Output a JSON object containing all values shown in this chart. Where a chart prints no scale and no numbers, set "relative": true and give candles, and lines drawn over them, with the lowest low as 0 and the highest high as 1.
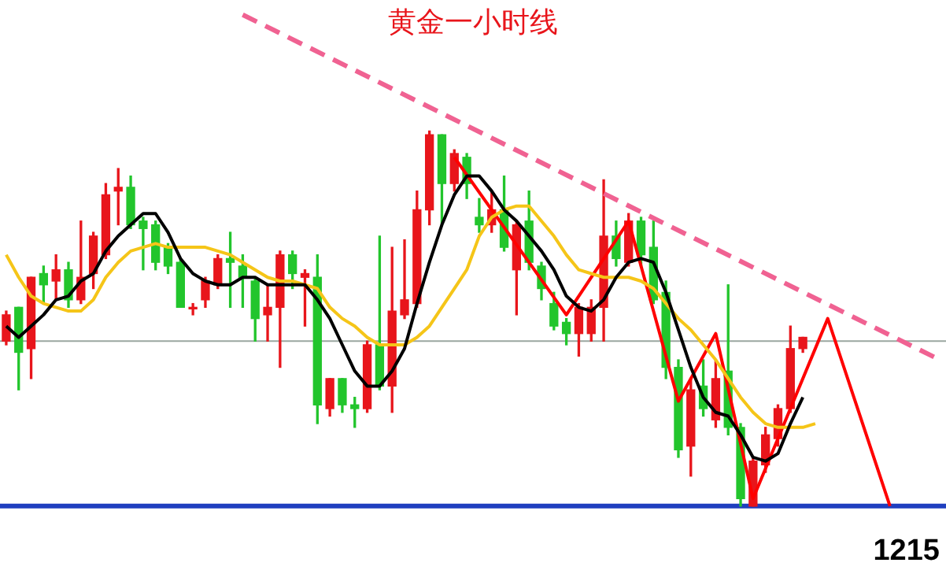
{
  "chart_data": {
    "type": "candlestick",
    "title": "黄金一小时线",
    "relative": true,
    "categories": [
      null,
      null,
      null,
      null,
      null,
      null,
      null,
      null,
      null,
      null,
      null,
      null,
      null,
      null,
      null,
      null,
      null,
      null,
      null,
      null,
      null,
      null,
      null,
      null,
      null,
      null,
      null,
      null,
      null,
      null,
      null,
      null,
      null,
      null,
      null,
      null,
      null,
      null,
      null,
      null,
      null,
      null,
      null,
      null,
      null,
      null,
      null,
      null,
      null,
      null,
      null,
      null,
      null,
      null,
      null,
      null,
      null,
      null,
      null,
      null,
      null,
      null,
      null,
      null,
      null,
      null,
      null,
      null,
      null,
      null,
      null,
      null,
      null,
      null,
      null,
      null
    ],
    "ohlc": [
      [
        0.44,
        0.52,
        0.43,
        0.51
      ],
      [
        0.53,
        0.53,
        0.31,
        0.41
      ],
      [
        0.42,
        0.61,
        0.34,
        0.61
      ],
      [
        0.62,
        0.64,
        0.54,
        0.59
      ],
      [
        0.6,
        0.67,
        0.55,
        0.63
      ],
      [
        0.63,
        0.65,
        0.53,
        0.55
      ],
      [
        0.55,
        0.76,
        0.54,
        0.61
      ],
      [
        0.62,
        0.73,
        0.58,
        0.72
      ],
      [
        0.67,
        0.86,
        0.66,
        0.83
      ],
      [
        0.84,
        0.9,
        0.75,
        0.85
      ],
      [
        0.85,
        0.88,
        0.74,
        0.75
      ],
      [
        0.76,
        0.77,
        0.63,
        0.74
      ],
      [
        0.75,
        0.76,
        0.63,
        0.65
      ],
      [
        0.69,
        0.7,
        0.62,
        0.64
      ],
      [
        0.65,
        0.66,
        0.53,
        0.53
      ],
      [
        0.53,
        0.54,
        0.51,
        0.53
      ],
      [
        0.55,
        0.61,
        0.53,
        0.6
      ],
      [
        0.59,
        0.67,
        0.58,
        0.66
      ],
      [
        0.66,
        0.73,
        0.53,
        0.65
      ],
      [
        0.64,
        0.67,
        0.53,
        0.61
      ],
      [
        0.6,
        0.61,
        0.44,
        0.5
      ],
      [
        0.51,
        0.59,
        0.44,
        0.53
      ],
      [
        0.53,
        0.68,
        0.37,
        0.67
      ],
      [
        0.67,
        0.68,
        0.58,
        0.62
      ],
      [
        0.61,
        0.63,
        0.48,
        0.62
      ],
      [
        0.61,
        0.67,
        0.22,
        0.27
      ],
      [
        0.26,
        0.34,
        0.24,
        0.34
      ],
      [
        0.34,
        0.34,
        0.25,
        0.27
      ],
      [
        0.27,
        0.29,
        0.21,
        0.26
      ],
      [
        0.26,
        0.44,
        0.25,
        0.43
      ],
      [
        0.43,
        0.72,
        0.31,
        0.32
      ],
      [
        0.32,
        0.69,
        0.25,
        0.52
      ],
      [
        0.51,
        0.71,
        0.5,
        0.55
      ],
      [
        0.54,
        0.84,
        0.53,
        0.79
      ],
      [
        0.79,
        1,
        0.75,
        0.99
      ],
      [
        0.99,
        0.99,
        0.75,
        0.86
      ],
      [
        0.86,
        0.95,
        0.84,
        0.94
      ],
      [
        0.93,
        0.94,
        0.82,
        0.86
      ],
      [
        0.77,
        0.82,
        0.73,
        0.75
      ],
      [
        0.75,
        0.84,
        0.73,
        0.79
      ],
      [
        0.79,
        0.88,
        0.68,
        0.69
      ],
      [
        0.63,
        0.76,
        0.51,
        0.75
      ],
      [
        0.76,
        0.84,
        0.63,
        0.65
      ],
      [
        0.64,
        0.65,
        0.55,
        0.58
      ],
      [
        0.54,
        0.57,
        0.47,
        0.48
      ],
      [
        0.49,
        0.5,
        0.43,
        0.46
      ],
      [
        0.46,
        0.54,
        0.4,
        0.53
      ],
      [
        0.46,
        0.55,
        0.44,
        0.53
      ],
      [
        0.53,
        0.87,
        0.44,
        0.72
      ],
      [
        0.72,
        0.76,
        0.64,
        0.66
      ],
      [
        0.65,
        0.78,
        0.64,
        0.76
      ],
      [
        0.76,
        0.77,
        0.64,
        0.67
      ],
      [
        0.69,
        0.76,
        0.54,
        0.55
      ],
      [
        0.57,
        0.6,
        0.34,
        0.37
      ],
      [
        0.37,
        0.39,
        0.13,
        0.15
      ],
      [
        0.16,
        0.34,
        0.08,
        0.31
      ],
      [
        0.32,
        0.39,
        0.24,
        0.26
      ],
      [
        0.23,
        0.39,
        0.21,
        0.34
      ],
      [
        0.36,
        0.59,
        0.19,
        0.21
      ],
      [
        0.21,
        0.22,
        0,
        0.02
      ],
      [
        0,
        0.13,
        0,
        0.12
      ],
      [
        0.11,
        0.21,
        0.09,
        0.19
      ],
      [
        0.18,
        0.27,
        0.16,
        0.26
      ],
      [
        0.26,
        0.48,
        0.25,
        0.42
      ],
      [
        0.42,
        0.45,
        0.41,
        0.45
      ],
      null,
      null,
      null,
      null,
      null,
      null,
      null,
      null,
      null,
      null,
      null
    ],
    "series": [
      {
        "type": "line",
        "color": "#000000",
        "values": [
          0.48,
          0.45,
          0.48,
          0.51,
          0.55,
          0.56,
          0.6,
          0.62,
          0.68,
          0.72,
          0.75,
          0.78,
          0.78,
          0.73,
          0.66,
          0.62,
          0.6,
          0.59,
          0.59,
          0.61,
          0.61,
          0.59,
          0.59,
          0.59,
          0.59,
          0.55,
          0.5,
          0.43,
          0.36,
          0.32,
          0.32,
          0.36,
          0.42,
          0.54,
          0.65,
          0.75,
          0.83,
          0.88,
          0.88,
          0.84,
          0.79,
          0.76,
          0.72,
          0.68,
          0.63,
          0.56,
          0.53,
          0.52,
          0.55,
          0.61,
          0.65,
          0.66,
          0.65,
          0.57,
          0.47,
          0.37,
          0.29,
          0.25,
          0.24,
          0.19,
          0.13,
          0.12,
          0.14,
          0.22,
          0.29,
          null,
          null,
          null,
          null,
          null,
          null,
          null,
          null,
          null,
          null,
          null
        ]
      },
      {
        "type": "line",
        "color": "#f5c518",
        "values": [
          0.67,
          0.61,
          0.56,
          0.54,
          0.53,
          0.52,
          0.52,
          0.55,
          0.61,
          0.65,
          0.68,
          0.69,
          0.7,
          0.69,
          0.69,
          0.69,
          0.69,
          0.68,
          0.67,
          0.65,
          0.63,
          0.61,
          0.6,
          0.6,
          0.59,
          0.58,
          0.53,
          0.5,
          0.48,
          0.45,
          0.43,
          0.43,
          0.43,
          0.45,
          0.48,
          0.53,
          0.58,
          0.63,
          0.72,
          0.77,
          0.79,
          0.8,
          0.8,
          0.76,
          0.72,
          0.67,
          0.63,
          0.62,
          0.61,
          0.61,
          0.61,
          0.6,
          0.58,
          0.54,
          0.5,
          0.47,
          0.43,
          0.39,
          0.34,
          0.29,
          0.25,
          0.22,
          0.21,
          0.21,
          0.21,
          0.22,
          null,
          null,
          null,
          null,
          null,
          null,
          null,
          null,
          null,
          null
        ]
      },
      {
        "type": "line",
        "color": "#ff0000",
        "values": [
          null,
          null,
          null,
          null,
          null,
          null,
          null,
          null,
          null,
          null,
          null,
          null,
          null,
          null,
          null,
          null,
          null,
          null,
          null,
          null,
          null,
          null,
          null,
          null,
          null,
          null,
          null,
          null,
          null,
          null,
          null,
          null,
          null,
          null,
          null,
          null,
          0.93,
          null,
          null,
          null,
          null,
          null,
          null,
          null,
          null,
          0.51,
          null,
          null,
          null,
          null,
          0.76,
          null,
          null,
          null,
          0.28,
          null,
          null,
          0.46,
          null,
          null,
          0.02,
          null,
          null,
          null,
          null,
          null,
          0.5,
          null,
          null,
          null,
          null,
          0,
          null,
          null,
          null,
          null
        ]
      },
      {
        "type": "line",
        "color": "#f06292",
        "line_style": "dashed",
        "values": [
          null,
          null,
          null,
          null,
          null,
          null,
          null,
          null,
          null,
          null,
          null,
          null,
          null,
          null,
          null,
          null,
          null,
          null,
          null,
          1.31,
          null,
          null,
          null,
          null,
          null,
          null,
          null,
          null,
          null,
          null,
          null,
          null,
          null,
          null,
          null,
          null,
          null,
          null,
          null,
          null,
          null,
          null,
          null,
          null,
          null,
          null,
          null,
          null,
          null,
          null,
          null,
          null,
          null,
          null,
          null,
          null,
          null,
          null,
          null,
          null,
          null,
          null,
          null,
          null,
          null,
          null,
          null,
          null,
          null,
          null,
          null,
          null,
          null,
          null,
          null,
          0.39
        ]
      }
    ],
    "ref_lines": [
      {
        "axis": "y",
        "value": 0,
        "color": "#1f3fbf"
      },
      {
        "axis": "y",
        "value": 0.44,
        "color": "#9aa7a0"
      }
    ],
    "annotations": [
      "1215"
    ],
    "legend": false
  }
}
